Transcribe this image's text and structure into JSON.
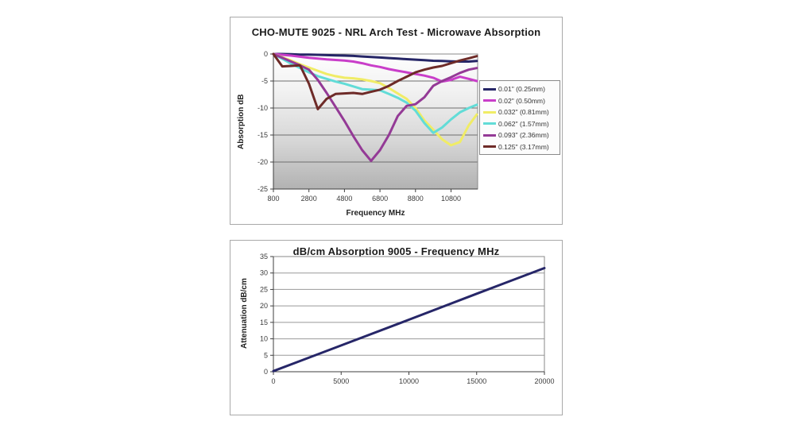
{
  "page": {
    "background": "#ffffff"
  },
  "chart_data": [
    {
      "type": "line",
      "title": "CHO-MUTE 9025 - NRL Arch Test - Microwave Absorption",
      "x_label": "Frequency MHz",
      "y_label": "Absorption dB",
      "x_range": [
        800,
        12300
      ],
      "y_range": [
        -25,
        0
      ],
      "x_ticks": [
        800,
        2800,
        4800,
        6800,
        8800,
        10800
      ],
      "y_ticks": [
        0,
        -5,
        -10,
        -15,
        -20,
        -25
      ],
      "grid": true,
      "legend_position": "right-overlay",
      "plot_gradient": [
        "#fefefe",
        "#f0f0f0",
        "#d6d6d6",
        "#b2b2b2"
      ],
      "x": [
        800,
        1300,
        1800,
        2300,
        2800,
        3300,
        3800,
        4300,
        4800,
        5300,
        5800,
        6300,
        6800,
        7300,
        7800,
        8300,
        8800,
        9300,
        9800,
        10300,
        10800,
        11300,
        11800,
        12250
      ],
      "series": [
        {
          "label": "0.01\" (0.25mm)",
          "color": "#252566",
          "values": [
            0,
            0,
            -0.05,
            -0.1,
            -0.1,
            -0.15,
            -0.2,
            -0.25,
            -0.3,
            -0.35,
            -0.45,
            -0.55,
            -0.65,
            -0.75,
            -0.85,
            -0.95,
            -1.05,
            -1.15,
            -1.25,
            -1.3,
            -1.35,
            -1.4,
            -1.4,
            -1.3
          ]
        },
        {
          "label": "0.02\" (0.50mm)",
          "color": "#c93ec9",
          "values": [
            0,
            -0.15,
            -0.3,
            -0.5,
            -0.7,
            -0.85,
            -1.0,
            -1.1,
            -1.2,
            -1.4,
            -1.7,
            -2.1,
            -2.4,
            -2.8,
            -3.1,
            -3.4,
            -3.7,
            -4.0,
            -4.4,
            -5.1,
            -4.8,
            -4.2,
            -4.6,
            -5.0
          ]
        },
        {
          "label": "0.032\" (0.81mm)",
          "color": "#f0ec66",
          "values": [
            0,
            -0.6,
            -1.2,
            -1.9,
            -2.5,
            -3.1,
            -3.7,
            -4.1,
            -4.4,
            -4.5,
            -4.7,
            -5.0,
            -5.4,
            -6.3,
            -7.3,
            -8.3,
            -10.0,
            -12.3,
            -14.0,
            -15.8,
            -16.9,
            -16.3,
            -13.2,
            -11.2
          ]
        },
        {
          "label": "0.062\" (1.57mm)",
          "color": "#62dcd7",
          "values": [
            0,
            -0.9,
            -1.8,
            -2.6,
            -3.4,
            -4.1,
            -4.6,
            -5.1,
            -5.5,
            -6.0,
            -6.5,
            -6.6,
            -6.7,
            -7.4,
            -8.1,
            -9.0,
            -10.5,
            -12.8,
            -14.6,
            -13.6,
            -12.1,
            -10.8,
            -10.0,
            -9.4
          ]
        },
        {
          "label": "0.093\" (2.36mm)",
          "color": "#943a96",
          "values": [
            0,
            -0.7,
            -1.4,
            -2.1,
            -2.9,
            -4.8,
            -7.2,
            -9.8,
            -12.4,
            -15.2,
            -17.8,
            -19.8,
            -17.8,
            -15.0,
            -11.5,
            -9.6,
            -9.3,
            -8.0,
            -5.9,
            -5.0,
            -4.3,
            -3.5,
            -2.9,
            -2.6
          ]
        },
        {
          "label": "0.125\" (3.17mm)",
          "color": "#6e2b28",
          "values": [
            0,
            -2.3,
            -2.2,
            -2.1,
            -5.5,
            -10.2,
            -8.3,
            -7.4,
            -7.3,
            -7.2,
            -7.4,
            -7.0,
            -6.6,
            -5.9,
            -5.0,
            -4.2,
            -3.4,
            -2.9,
            -2.5,
            -2.2,
            -1.7,
            -1.2,
            -0.8,
            -0.4
          ]
        }
      ]
    },
    {
      "type": "line",
      "title": "dB/cm Absorption 9005 - Frequency MHz",
      "x_label": "",
      "y_label": "Attenuation dB/cm",
      "x_range": [
        0,
        20000
      ],
      "y_range": [
        0,
        35
      ],
      "x_ticks": [
        0,
        5000,
        10000,
        15000,
        20000
      ],
      "y_ticks": [
        0,
        5,
        10,
        15,
        20,
        25,
        30,
        35
      ],
      "grid": true,
      "legend_position": "none",
      "x": [
        0,
        5000,
        10000,
        15000,
        20000
      ],
      "series": [
        {
          "label": "",
          "color": "#262668",
          "values": [
            0.2,
            8.0,
            15.8,
            23.7,
            31.5
          ]
        }
      ]
    }
  ]
}
